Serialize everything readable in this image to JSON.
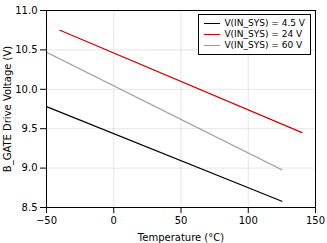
{
  "chart_data": {
    "type": "line",
    "xlabel": "Temperature (°C)",
    "ylabel": "B_GATE Drive Voltage (V)",
    "xlim": [
      -50,
      150
    ],
    "ylim": [
      8.5,
      11
    ],
    "xticks": [
      -50,
      0,
      50,
      100,
      150
    ],
    "yticks": [
      8.5,
      {
        "value": 9,
        "label": "9.0"
      },
      9.5,
      {
        "value": 10,
        "label": "10.0"
      },
      10.5,
      {
        "value": 11,
        "label": "11.0"
      }
    ],
    "series": [
      {
        "name": "V(IN_SYS) = 4.5 V",
        "color": "#000000",
        "x": [
          -50,
          125
        ],
        "values": [
          9.78,
          8.58
        ]
      },
      {
        "name": "V(IN_SYS) = 24 V",
        "color": "#cc0000",
        "x": [
          -40,
          140
        ],
        "values": [
          10.75,
          9.45
        ]
      },
      {
        "name": "V(IN_SYS) = 60 V",
        "color": "#999999",
        "x": [
          -50,
          125
        ],
        "values": [
          10.47,
          8.98
        ]
      }
    ],
    "grid": true,
    "legend": "upper right"
  }
}
